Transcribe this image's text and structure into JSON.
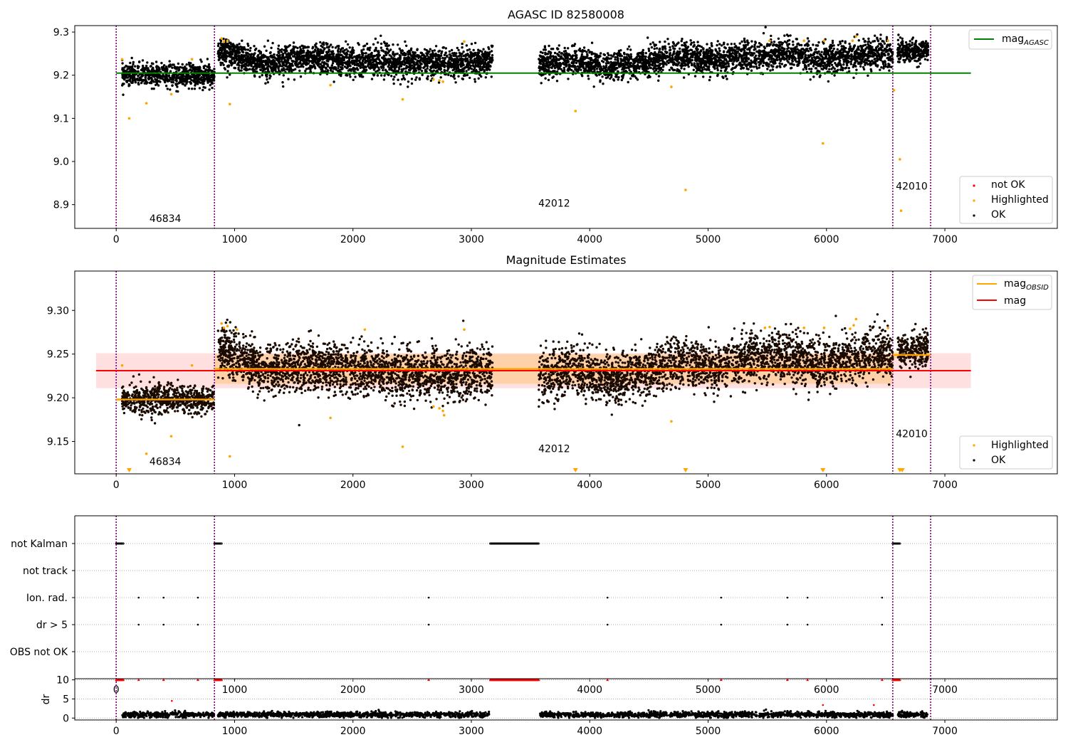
{
  "chart_data": [
    {
      "type": "scatter",
      "title": "AGASC ID 82580008",
      "xlabel": "",
      "ylabel": "",
      "xlim": [
        -350,
        7950
      ],
      "ylim": [
        8.845,
        9.315
      ],
      "xticks": [
        0,
        1000,
        2000,
        3000,
        4000,
        5000,
        6000,
        7000
      ],
      "xtick_labels": [
        "0",
        "1000",
        "2000",
        "3000",
        "4000",
        "5000",
        "6000",
        "7000"
      ],
      "yticks": [
        8.9,
        9.0,
        9.1,
        9.2,
        9.3
      ],
      "ytick_labels": [
        "8.9",
        "9.0",
        "9.1",
        "9.2",
        "9.3"
      ],
      "obsid_boundaries": [
        0,
        830,
        6560,
        6880
      ],
      "obsid_labels": [
        {
          "text": "46834",
          "x": 415,
          "y": 8.86
        },
        {
          "text": "42012",
          "x": 3700,
          "y": 8.895
        },
        {
          "text": "42010",
          "x": 6720,
          "y": 8.935
        }
      ],
      "reference_lines": [
        {
          "name": "mag_AGASC",
          "y": 9.205,
          "x": [
            0,
            7220
          ],
          "color": "#008000"
        }
      ],
      "segments": [
        {
          "x": [
            50,
            830
          ],
          "center": 9.2,
          "spread": 0.013
        },
        {
          "x": [
            860,
            3180
          ],
          "center": 9.235,
          "spread": 0.017,
          "trend": [
            9.258,
            9.225,
            9.24,
            9.232,
            9.23,
            9.227,
            9.232
          ]
        },
        {
          "x": [
            3570,
            6560
          ],
          "center": 9.232,
          "spread": 0.017,
          "trend": [
            9.225,
            9.235,
            9.22,
            9.23,
            9.24,
            9.235,
            9.245,
            9.25,
            9.235,
            9.248,
            9.25
          ]
        },
        {
          "x": [
            6600,
            6860
          ],
          "center": 9.255,
          "spread": 0.013
        }
      ],
      "highlighted": [
        [
          50,
          9.237
        ],
        [
          110,
          9.1
        ],
        [
          255,
          9.135
        ],
        [
          465,
          9.156
        ],
        [
          640,
          9.237
        ],
        [
          890,
          9.285
        ],
        [
          910,
          9.278
        ],
        [
          940,
          9.28
        ],
        [
          960,
          9.133
        ],
        [
          1810,
          9.177
        ],
        [
          2420,
          9.144
        ],
        [
          2680,
          9.19
        ],
        [
          2730,
          9.188
        ],
        [
          2760,
          9.185
        ],
        [
          2940,
          9.278
        ],
        [
          3880,
          9.117
        ],
        [
          4690,
          9.173
        ],
        [
          4810,
          8.934
        ],
        [
          5520,
          9.28
        ],
        [
          5810,
          9.28
        ],
        [
          5970,
          9.042
        ],
        [
          5980,
          9.28
        ],
        [
          6220,
          9.28
        ],
        [
          6250,
          9.29
        ],
        [
          6520,
          9.28
        ],
        [
          6570,
          9.165
        ],
        [
          6620,
          9.005
        ],
        [
          6630,
          8.886
        ]
      ],
      "legends": [
        {
          "position": "upper-right",
          "entries": [
            {
              "label": "mag",
              "sub": "AGASC",
              "marker": "line",
              "color": "#008000"
            }
          ]
        },
        {
          "position": "lower-right",
          "entries": [
            {
              "label": "not OK",
              "marker": "dot",
              "color": "#ff0000"
            },
            {
              "label": "Highlighted",
              "marker": "dot",
              "color": "#ffa500"
            },
            {
              "label": "OK",
              "marker": "dot",
              "color": "#000000"
            }
          ]
        }
      ]
    },
    {
      "type": "scatter",
      "title": "Magnitude Estimates",
      "xlabel": "",
      "ylabel": "",
      "xlim": [
        -350,
        7950
      ],
      "ylim": [
        9.113,
        9.345
      ],
      "xticks": [
        0,
        1000,
        2000,
        3000,
        4000,
        5000,
        6000,
        7000
      ],
      "xtick_labels": [
        "0",
        "1000",
        "2000",
        "3000",
        "4000",
        "5000",
        "6000",
        "7000"
      ],
      "yticks": [
        9.15,
        9.2,
        9.25,
        9.3
      ],
      "ytick_labels": [
        "9.15",
        "9.20",
        "9.25",
        "9.30"
      ],
      "obsid_boundaries": [
        0,
        830,
        6560,
        6880
      ],
      "obsid_labels": [
        {
          "text": "46834",
          "x": 415,
          "y": 9.123
        },
        {
          "text": "42012",
          "x": 3700,
          "y": 9.138
        },
        {
          "text": "42010",
          "x": 6720,
          "y": 9.155
        }
      ],
      "mag_band": {
        "center": 9.231,
        "low": 9.211,
        "high": 9.251,
        "x": [
          -170,
          7220
        ],
        "color": "#ff0000"
      },
      "obsid_mags": [
        {
          "x": [
            0,
            830
          ],
          "y": 9.198,
          "low": 9.196,
          "high": 9.2
        },
        {
          "x": [
            830,
            6560
          ],
          "y": 9.233,
          "low": 9.216,
          "high": 9.25
        },
        {
          "x": [
            6560,
            6880
          ],
          "y": 9.249,
          "low": 9.245,
          "high": 9.253
        }
      ],
      "segments": [
        {
          "x": [
            50,
            830
          ],
          "center": 9.198,
          "spread": 0.008
        },
        {
          "x": [
            860,
            3180
          ],
          "center": 9.235,
          "spread": 0.014,
          "trend": [
            9.255,
            9.232,
            9.237,
            9.232,
            9.229,
            9.226,
            9.232
          ]
        },
        {
          "x": [
            3570,
            6560
          ],
          "center": 9.232,
          "spread": 0.014,
          "trend": [
            9.225,
            9.235,
            9.22,
            9.23,
            9.24,
            9.235,
            9.245,
            9.25,
            9.235,
            9.248,
            9.25
          ]
        },
        {
          "x": [
            6600,
            6860
          ],
          "center": 9.254,
          "spread": 0.01
        }
      ],
      "highlighted": [
        [
          50,
          9.237
        ],
        [
          255,
          9.136
        ],
        [
          465,
          9.156
        ],
        [
          640,
          9.237
        ],
        [
          890,
          9.285
        ],
        [
          910,
          9.28
        ],
        [
          940,
          9.282
        ],
        [
          960,
          9.133
        ],
        [
          1020,
          9.278
        ],
        [
          1810,
          9.177
        ],
        [
          2100,
          9.278
        ],
        [
          2420,
          9.144
        ],
        [
          2680,
          9.19
        ],
        [
          2730,
          9.188
        ],
        [
          2760,
          9.185
        ],
        [
          2770,
          9.18
        ],
        [
          2940,
          9.278
        ],
        [
          4690,
          9.173
        ],
        [
          5480,
          9.28
        ],
        [
          5520,
          9.281
        ],
        [
          5810,
          9.28
        ],
        [
          5980,
          9.28
        ],
        [
          6200,
          9.279
        ],
        [
          6230,
          9.283
        ],
        [
          6250,
          9.29
        ],
        [
          6520,
          9.28
        ]
      ],
      "highlighted_off_scale": [
        110,
        3880,
        4810,
        5970,
        6620,
        6640
      ],
      "legends": [
        {
          "position": "upper-right",
          "entries": [
            {
              "label": "mag",
              "sub": "OBSID",
              "marker": "line",
              "color": "#ffa500"
            },
            {
              "label": "mag",
              "marker": "line",
              "color": "#ff0000"
            }
          ]
        },
        {
          "position": "lower-right",
          "entries": [
            {
              "label": "Highlighted",
              "marker": "dot",
              "color": "#ffa500"
            },
            {
              "label": "OK",
              "marker": "dot",
              "color": "#000000"
            }
          ]
        }
      ]
    },
    {
      "type": "scatter",
      "title": "",
      "xlabel": "",
      "ylabel": "",
      "xlim": [
        -350,
        7950
      ],
      "xticks": [
        0,
        1000,
        2000,
        3000,
        4000,
        5000,
        6000,
        7000
      ],
      "xtick_labels": [
        "0",
        "1000",
        "2000",
        "3000",
        "4000",
        "5000",
        "6000",
        "7000"
      ],
      "obsid_boundaries": [
        0,
        830,
        6560,
        6880
      ],
      "flag_rows": [
        "not Kalman",
        "not track",
        "Ion. rad.",
        "dr > 5",
        "OBS not OK"
      ],
      "flags": {
        "not Kalman": [
          [
            0,
            60
          ],
          [
            830,
            890
          ],
          [
            3160,
            3570
          ],
          [
            6560,
            6620
          ]
        ],
        "not track": [],
        "Ion. rad.": [
          190,
          400,
          690,
          2640,
          4150,
          5110,
          5670,
          5840,
          6470
        ],
        "dr > 5": [
          190,
          400,
          690,
          2640,
          4150,
          5110,
          5670,
          5840,
          6470
        ],
        "OBS not OK": []
      }
    },
    {
      "type": "scatter",
      "title": "",
      "xlabel": "",
      "ylabel": "dr",
      "xlim": [
        -350,
        7950
      ],
      "ylim": [
        -0.5,
        10.3
      ],
      "yticks": [
        0,
        5,
        10
      ],
      "ytick_labels": [
        "0",
        "5",
        "10"
      ],
      "xticks": [
        0,
        1000,
        2000,
        3000,
        4000,
        5000,
        6000,
        7000
      ],
      "xtick_labels": [
        "0",
        "1000",
        "2000",
        "3000",
        "4000",
        "5000",
        "6000",
        "7000"
      ],
      "obsid_boundaries": [
        0,
        830,
        6560,
        6880
      ],
      "clipped_at_10": [
        [
          0,
          60
        ],
        [
          830,
          890
        ],
        [
          3160,
          3570
        ],
        [
          6560,
          6620
        ],
        190,
        400,
        690,
        2640,
        4150,
        5110,
        5670,
        5840,
        6470
      ],
      "dr_segments": [
        [
          50,
          830
        ],
        [
          860,
          3150
        ],
        [
          3580,
          6560
        ],
        [
          6600,
          6860
        ]
      ],
      "dr_typical": 0.9,
      "dr_outliers": [
        [
          470,
          4.5
        ],
        [
          5970,
          3.4
        ],
        [
          6400,
          3.4
        ]
      ]
    }
  ]
}
